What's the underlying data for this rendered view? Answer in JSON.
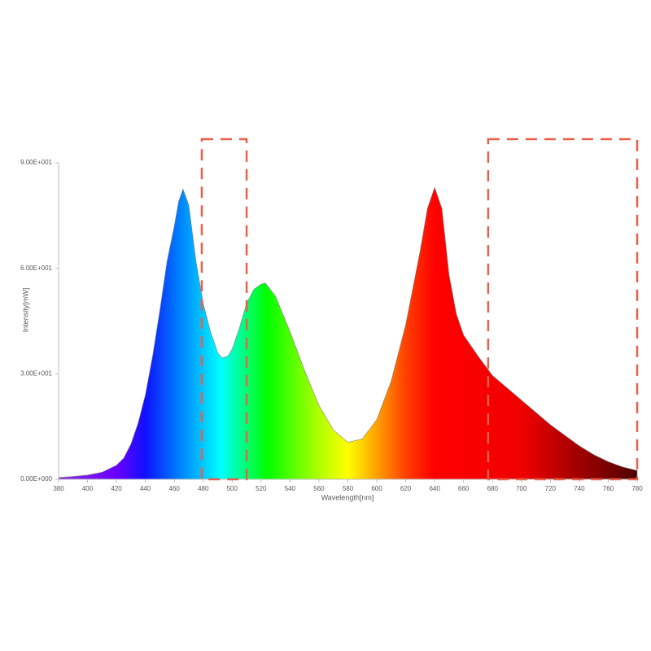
{
  "chart_data": {
    "type": "area",
    "x_label": "Wavelength[nm]",
    "y_label": "Intensity[mW]",
    "xlim": [
      380,
      780
    ],
    "ylim": [
      0,
      90
    ],
    "xticks": [
      380,
      400,
      420,
      440,
      460,
      480,
      500,
      520,
      540,
      560,
      580,
      600,
      620,
      640,
      660,
      680,
      700,
      720,
      740,
      760,
      780
    ],
    "yticks": [
      {
        "value": 0,
        "label": "0.00E+000"
      },
      {
        "value": 30,
        "label": "3.00E+001"
      },
      {
        "value": 60,
        "label": "6.00E+001"
      },
      {
        "value": 90,
        "label": "9.00E+001"
      }
    ],
    "x": [
      380,
      390,
      400,
      410,
      420,
      425,
      430,
      435,
      440,
      445,
      450,
      455,
      460,
      463,
      466,
      470,
      475,
      480,
      485,
      490,
      493,
      497,
      500,
      505,
      510,
      515,
      520,
      523,
      530,
      540,
      550,
      560,
      570,
      580,
      590,
      600,
      610,
      620,
      630,
      635,
      640,
      645,
      650,
      655,
      660,
      670,
      680,
      690,
      700,
      710,
      720,
      730,
      740,
      750,
      760,
      770,
      780
    ],
    "values": [
      0.5,
      0.8,
      1.2,
      2,
      4,
      6,
      10,
      16,
      24,
      35,
      48,
      62,
      72,
      79,
      82.5,
      78,
      62,
      50,
      42,
      36,
      34.5,
      35,
      37,
      43,
      50,
      54,
      55.5,
      55.8,
      52,
      42,
      31,
      21,
      14,
      10.5,
      11.5,
      17,
      28,
      44,
      65,
      77,
      83,
      77,
      58,
      47,
      41,
      35,
      29.5,
      26,
      22.5,
      19,
      15.5,
      12.5,
      9.5,
      7,
      5,
      3.5,
      2.5
    ],
    "highlight_ranges": [
      [
        479,
        510
      ],
      [
        677,
        780
      ]
    ],
    "highlight_color": "#e8604c",
    "grid": false
  }
}
